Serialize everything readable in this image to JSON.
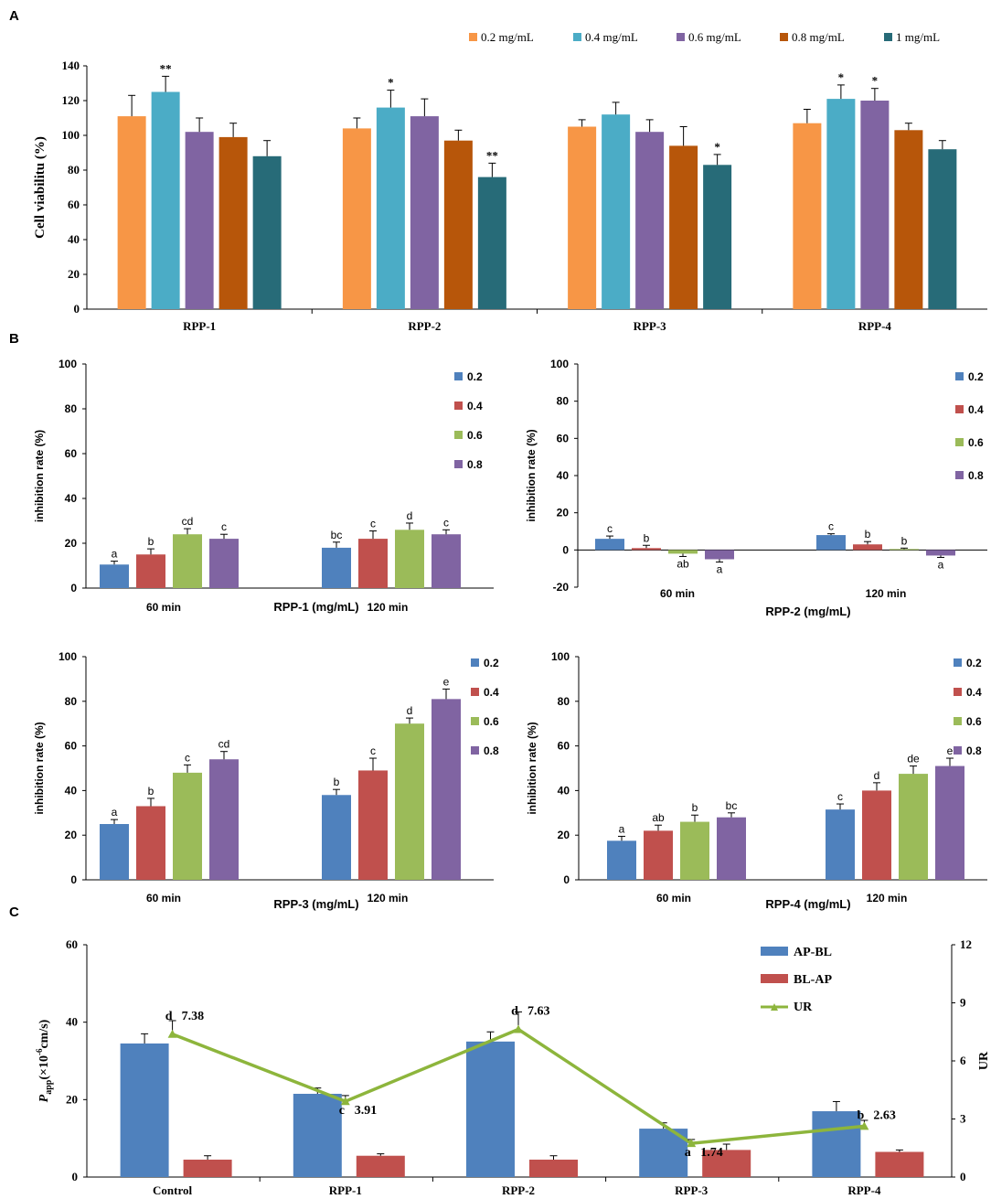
{
  "panel_labels": {
    "a": "A",
    "b": "B",
    "c": "C"
  },
  "chart_data": [
    {
      "id": "A",
      "type": "bar",
      "ylabel": "Cell viabilitu (%)",
      "ylim": [
        0,
        140
      ],
      "yticks": [
        0,
        20,
        40,
        60,
        80,
        100,
        120,
        140
      ],
      "categories": [
        "RPP-1",
        "RPP-2",
        "RPP-3",
        "RPP-4"
      ],
      "legend_position": "top-right",
      "series": [
        {
          "name": "0.2 mg/mL",
          "color": "#F79646",
          "values": [
            111,
            104,
            105,
            107
          ],
          "errors": [
            12,
            6,
            4,
            8
          ],
          "labels": [
            "",
            "",
            "",
            ""
          ]
        },
        {
          "name": "0.4 mg/mL",
          "color": "#4BACC6",
          "values": [
            125,
            116,
            112,
            121
          ],
          "errors": [
            9,
            10,
            7,
            8
          ],
          "labels": [
            "**",
            "*",
            "",
            "*"
          ]
        },
        {
          "name": "0.6 mg/mL",
          "color": "#8064A2",
          "values": [
            102,
            111,
            102,
            120
          ],
          "errors": [
            8,
            10,
            7,
            7
          ],
          "labels": [
            "",
            "",
            "",
            "*"
          ]
        },
        {
          "name": "0.8 mg/mL",
          "color": "#B7560A",
          "values": [
            99,
            97,
            94,
            103
          ],
          "errors": [
            8,
            6,
            11,
            4
          ],
          "labels": [
            "",
            "",
            "",
            ""
          ]
        },
        {
          "name": "1 mg/mL",
          "color": "#276B78",
          "values": [
            88,
            76,
            83,
            92
          ],
          "errors": [
            9,
            8,
            6,
            5
          ],
          "labels": [
            "",
            "**",
            "*",
            ""
          ]
        }
      ]
    },
    {
      "id": "B1",
      "type": "bar",
      "ylabel": "inhibition rate (%)",
      "xlabel": "RPP-1 (mg/mL)",
      "ylim": [
        0,
        100
      ],
      "yticks": [
        0,
        20,
        40,
        60,
        80,
        100
      ],
      "categories": [
        "60 min",
        "120 min"
      ],
      "series": [
        {
          "name": "0.2",
          "color": "#4F81BD",
          "values": [
            10.5,
            18
          ],
          "errors": [
            1.5,
            2.5
          ],
          "labels": [
            "a",
            "bc"
          ]
        },
        {
          "name": "0.4",
          "color": "#C0504D",
          "values": [
            15,
            22
          ],
          "errors": [
            2.5,
            3.5
          ],
          "labels": [
            "b",
            "c"
          ]
        },
        {
          "name": "0.6",
          "color": "#9BBB59",
          "values": [
            24,
            26
          ],
          "errors": [
            2.5,
            3
          ],
          "labels": [
            "cd",
            "d"
          ]
        },
        {
          "name": "0.8",
          "color": "#8064A2",
          "values": [
            22,
            24
          ],
          "errors": [
            2,
            2
          ],
          "labels": [
            "c",
            "c"
          ]
        }
      ]
    },
    {
      "id": "B2",
      "type": "bar",
      "ylabel": "inhibition rate (%)",
      "xlabel": "RPP-2 (mg/mL)",
      "ylim": [
        -20,
        100
      ],
      "yticks": [
        -20,
        0,
        20,
        40,
        60,
        80,
        100
      ],
      "categories": [
        "60 min",
        "120 min"
      ],
      "series": [
        {
          "name": "0.2",
          "color": "#4F81BD",
          "values": [
            6,
            8
          ],
          "errors": [
            1.5,
            0.7
          ],
          "labels": [
            "c",
            "c"
          ]
        },
        {
          "name": "0.4",
          "color": "#C0504D",
          "values": [
            1,
            3
          ],
          "errors": [
            1.5,
            1.5
          ],
          "labels": [
            "b",
            "b"
          ]
        },
        {
          "name": "0.6",
          "color": "#9BBB59",
          "values": [
            -2,
            0.5
          ],
          "errors": [
            1.5,
            0.5
          ],
          "labels": [
            "ab",
            "b"
          ]
        },
        {
          "name": "0.8",
          "color": "#8064A2",
          "values": [
            -5,
            -3
          ],
          "errors": [
            1.5,
            1
          ],
          "labels": [
            "a",
            "a"
          ]
        }
      ]
    },
    {
      "id": "B3",
      "type": "bar",
      "ylabel": "inhibition rate (%)",
      "xlabel": "RPP-3 (mg/mL)",
      "ylim": [
        0,
        100
      ],
      "yticks": [
        0,
        20,
        40,
        60,
        80,
        100
      ],
      "categories": [
        "60 min",
        "120 min"
      ],
      "series": [
        {
          "name": "0.2",
          "color": "#4F81BD",
          "values": [
            25,
            38
          ],
          "errors": [
            2,
            2.5
          ],
          "labels": [
            "a",
            "b"
          ]
        },
        {
          "name": "0.4",
          "color": "#C0504D",
          "values": [
            33,
            49
          ],
          "errors": [
            3.5,
            5.5
          ],
          "labels": [
            "b",
            "c"
          ]
        },
        {
          "name": "0.6",
          "color": "#9BBB59",
          "values": [
            48,
            70
          ],
          "errors": [
            3.5,
            2.5
          ],
          "labels": [
            "c",
            "d"
          ]
        },
        {
          "name": "0.8",
          "color": "#8064A2",
          "values": [
            54,
            81
          ],
          "errors": [
            3.5,
            4.5
          ],
          "labels": [
            "cd",
            "e"
          ]
        }
      ]
    },
    {
      "id": "B4",
      "type": "bar",
      "ylabel": "inhibition rate (%)",
      "xlabel": "RPP-4 (mg/mL)",
      "ylim": [
        0,
        100
      ],
      "yticks": [
        0,
        20,
        40,
        60,
        80,
        100
      ],
      "categories": [
        "60 min",
        "120 min"
      ],
      "series": [
        {
          "name": "0.2",
          "color": "#4F81BD",
          "values": [
            17.5,
            31.5
          ],
          "errors": [
            2,
            2.5
          ],
          "labels": [
            "a",
            "c"
          ]
        },
        {
          "name": "0.4",
          "color": "#C0504D",
          "values": [
            22,
            40
          ],
          "errors": [
            2.5,
            3.5
          ],
          "labels": [
            "ab",
            "d"
          ]
        },
        {
          "name": "0.6",
          "color": "#9BBB59",
          "values": [
            26,
            47.5
          ],
          "errors": [
            3,
            3.5
          ],
          "labels": [
            "b",
            "de"
          ]
        },
        {
          "name": "0.8",
          "color": "#8064A2",
          "values": [
            28,
            51
          ],
          "errors": [
            2,
            3.5
          ],
          "labels": [
            "bc",
            "e"
          ]
        }
      ]
    },
    {
      "id": "C",
      "type": "bar",
      "ylabel_main": "P",
      "ylabel_sub": "app",
      "ylabel_rest": "(×10",
      "ylabel_sup": "-6",
      "ylabel_unit": "cm/s)",
      "y2label": "UR",
      "ylim": [
        0,
        60
      ],
      "yticks": [
        0,
        20,
        40,
        60
      ],
      "y2lim": [
        0,
        12
      ],
      "y2ticks": [
        0,
        3,
        6,
        9,
        12
      ],
      "categories": [
        "Control",
        "RPP-1",
        "RPP-2",
        "RPP-3",
        "RPP-4"
      ],
      "series": [
        {
          "name": "AP-BL",
          "color": "#4F81BD",
          "values": [
            34.5,
            21.5,
            35,
            12.5,
            17
          ],
          "errors": [
            2.5,
            1.5,
            2.5,
            1.5,
            2.5
          ]
        },
        {
          "name": "BL-AP",
          "color": "#C0504D",
          "values": [
            4.5,
            5.5,
            4.5,
            7,
            6.5
          ],
          "errors": [
            1,
            0.5,
            1,
            1.5,
            0.5
          ]
        }
      ],
      "line": {
        "name": "UR",
        "color": "#8DB53C",
        "values": [
          7.38,
          3.91,
          7.63,
          1.74,
          2.63
        ],
        "errors": [
          0.7,
          0.3,
          0.9,
          0.2,
          0.3
        ],
        "value_labels": [
          "7.38",
          "3.91",
          "7.63",
          "1.74",
          "2.63"
        ],
        "letters": [
          "d",
          "c",
          "d",
          "a",
          "b"
        ]
      }
    }
  ]
}
